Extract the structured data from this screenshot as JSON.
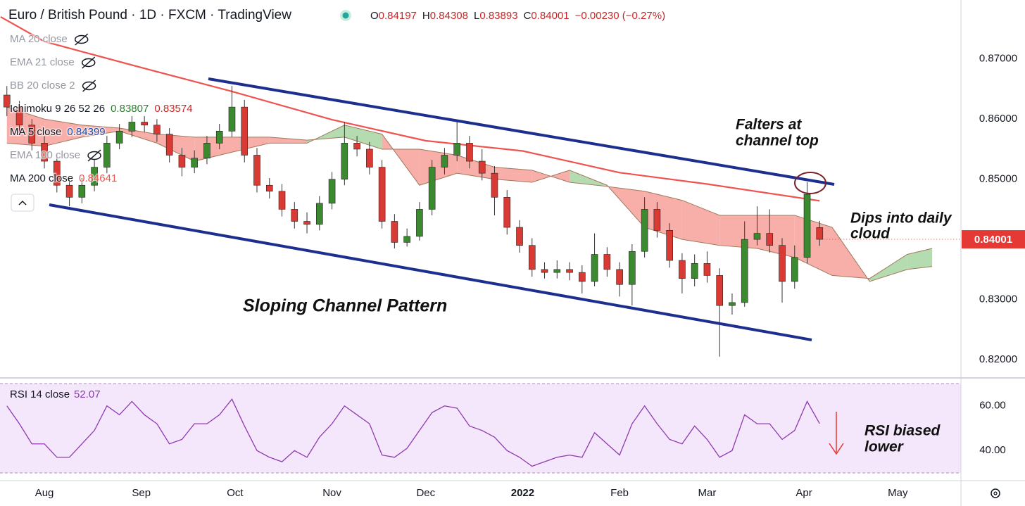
{
  "chart_data": {
    "type": "candlestick",
    "title": "Euro / British Pound · 1D · FXCM · TradingView",
    "ohlc_labels": [
      "O",
      "H",
      "L",
      "C"
    ],
    "change": "−0.00230 (−0.27%)",
    "up_color": "#3b8a30",
    "down_color": "#d93a33",
    "xlim": [
      -14.2,
      293.2
    ],
    "xticks": [
      {
        "value": 0,
        "label": "Aug"
      },
      {
        "value": 31,
        "label": "Sep"
      },
      {
        "value": 61,
        "label": "Oct"
      },
      {
        "value": 92,
        "label": "Nov"
      },
      {
        "value": 122,
        "label": "Dec"
      },
      {
        "value": 153,
        "label": "2022"
      },
      {
        "value": 184,
        "label": "Feb"
      },
      {
        "value": 212,
        "label": "Mar"
      },
      {
        "value": 243,
        "label": "Apr"
      },
      {
        "value": 273,
        "label": "May"
      }
    ],
    "ylim": [
      0.8172,
      0.8798
    ],
    "yticks": [
      {
        "value": 0.82,
        "label": "0.82000"
      },
      {
        "value": 0.83,
        "label": "0.83000"
      },
      {
        "value": 0.84,
        "label": "0.84000"
      },
      {
        "value": 0.85,
        "label": "0.85000"
      },
      {
        "value": 0.86,
        "label": "0.86000"
      },
      {
        "value": 0.87,
        "label": "0.87000"
      }
    ],
    "grid": false,
    "x": [
      -12,
      -8,
      -4,
      0,
      4,
      8,
      12,
      16,
      20,
      24,
      28,
      32,
      36,
      40,
      44,
      48,
      52,
      56,
      60,
      64,
      68,
      72,
      76,
      80,
      84,
      88,
      92,
      96,
      100,
      104,
      108,
      112,
      116,
      120,
      124,
      128,
      132,
      136,
      140,
      144,
      148,
      152,
      156,
      160,
      164,
      168,
      172,
      176,
      180,
      184,
      188,
      192,
      196,
      200,
      204,
      208,
      212,
      216,
      220,
      224,
      228,
      232,
      236,
      240,
      244,
      248
    ],
    "open": [
      0.864,
      0.862,
      0.859,
      0.856,
      0.853,
      0.849,
      0.847,
      0.849,
      0.852,
      0.856,
      0.858,
      0.8595,
      0.859,
      0.8575,
      0.854,
      0.852,
      0.8535,
      0.856,
      0.858,
      0.862,
      0.854,
      0.849,
      0.848,
      0.845,
      0.843,
      0.8425,
      0.846,
      0.85,
      0.856,
      0.855,
      0.852,
      0.843,
      0.8395,
      0.8405,
      0.845,
      0.852,
      0.854,
      0.856,
      0.853,
      0.851,
      0.847,
      0.842,
      0.839,
      0.835,
      0.8345,
      0.835,
      0.8345,
      0.833,
      0.8375,
      0.835,
      0.8325,
      0.838,
      0.845,
      0.8415,
      0.8365,
      0.8335,
      0.836,
      0.834,
      0.829,
      0.8295,
      0.84,
      0.841,
      0.839,
      0.833,
      0.837,
      0.84197
    ],
    "high": [
      0.8655,
      0.863,
      0.86,
      0.8572,
      0.854,
      0.85,
      0.8502,
      0.8532,
      0.8572,
      0.8592,
      0.8605,
      0.8605,
      0.86,
      0.8585,
      0.8552,
      0.8548,
      0.8572,
      0.8592,
      0.8655,
      0.8632,
      0.8552,
      0.8502,
      0.8492,
      0.8462,
      0.8445,
      0.8472,
      0.8512,
      0.8595,
      0.8572,
      0.8562,
      0.8532,
      0.8442,
      0.8418,
      0.8462,
      0.8532,
      0.8552,
      0.8598,
      0.8572,
      0.855,
      0.8522,
      0.8482,
      0.8432,
      0.8402,
      0.8362,
      0.8365,
      0.8362,
      0.8357,
      0.841,
      0.8387,
      0.8362,
      0.8392,
      0.847,
      0.8462,
      0.8427,
      0.8377,
      0.8375,
      0.838,
      0.8352,
      0.831,
      0.843,
      0.8455,
      0.845,
      0.8402,
      0.839,
      0.8495,
      0.84308
    ],
    "low": [
      0.8605,
      0.8578,
      0.8548,
      0.8518,
      0.8478,
      0.8455,
      0.846,
      0.848,
      0.851,
      0.855,
      0.857,
      0.8578,
      0.8562,
      0.8528,
      0.8505,
      0.851,
      0.8525,
      0.855,
      0.857,
      0.8528,
      0.8478,
      0.8468,
      0.8438,
      0.8418,
      0.841,
      0.8415,
      0.845,
      0.849,
      0.8538,
      0.8508,
      0.8418,
      0.8385,
      0.8388,
      0.8398,
      0.844,
      0.8508,
      0.853,
      0.8518,
      0.8498,
      0.844,
      0.8408,
      0.8378,
      0.8338,
      0.8335,
      0.8335,
      0.8332,
      0.831,
      0.8322,
      0.8338,
      0.8305,
      0.829,
      0.837,
      0.8403,
      0.8353,
      0.831,
      0.8322,
      0.8328,
      0.8205,
      0.8275,
      0.8288,
      0.839,
      0.8378,
      0.8295,
      0.8318,
      0.836,
      0.83893
    ],
    "close": [
      0.862,
      0.859,
      0.856,
      0.853,
      0.849,
      0.847,
      0.849,
      0.852,
      0.856,
      0.858,
      0.8595,
      0.859,
      0.8575,
      0.854,
      0.852,
      0.8535,
      0.856,
      0.858,
      0.862,
      0.854,
      0.849,
      0.848,
      0.845,
      0.843,
      0.8425,
      0.846,
      0.85,
      0.856,
      0.855,
      0.852,
      0.843,
      0.8395,
      0.8405,
      0.845,
      0.852,
      0.854,
      0.856,
      0.853,
      0.851,
      0.847,
      0.842,
      0.839,
      0.835,
      0.8345,
      0.835,
      0.8345,
      0.833,
      0.8375,
      0.835,
      0.8325,
      0.838,
      0.845,
      0.8415,
      0.8365,
      0.8335,
      0.836,
      0.834,
      0.829,
      0.8295,
      0.84,
      0.841,
      0.839,
      0.833,
      0.837,
      0.8475,
      0.84001
    ],
    "cloud": {
      "up_color": "#a8d5a2",
      "down_color": "#f7a19b",
      "edge_color": "#a0785a",
      "x": [
        -12,
        0,
        12,
        24,
        36,
        48,
        60,
        72,
        84,
        96,
        108,
        120,
        132,
        144,
        156,
        168,
        180,
        192,
        204,
        216,
        228,
        240,
        252,
        264,
        276,
        284
      ],
      "lead1": [
        0.856,
        0.8555,
        0.857,
        0.858,
        0.856,
        0.853,
        0.8545,
        0.856,
        0.856,
        0.859,
        0.8575,
        0.849,
        0.851,
        0.85,
        0.8495,
        0.8515,
        0.849,
        0.842,
        0.84,
        0.839,
        0.8385,
        0.837,
        0.834,
        0.8335,
        0.8375,
        0.8385
      ],
      "lead2": [
        0.862,
        0.86,
        0.859,
        0.8585,
        0.8575,
        0.857,
        0.857,
        0.857,
        0.8565,
        0.857,
        0.855,
        0.855,
        0.854,
        0.852,
        0.8515,
        0.8495,
        0.8488,
        0.848,
        0.8465,
        0.844,
        0.844,
        0.844,
        0.842,
        0.833,
        0.835,
        0.8355
      ]
    },
    "indicators": [
      {
        "name": "MA 20 close",
        "hidden": true
      },
      {
        "name": "EMA 21 close",
        "hidden": true
      },
      {
        "name": "BB 20 close 2",
        "hidden": true
      },
      {
        "name": "Ichimoku 9 26 52 26",
        "legend_values": [
          0.83807,
          0.83574
        ],
        "legend_colors": [
          "#2e7d32",
          "#c62828"
        ]
      },
      {
        "name": "MA 5 close",
        "legend_values": [
          0.84399
        ],
        "legend_colors": [
          "#1f4fa8"
        ]
      },
      {
        "name": "EMA 100 close",
        "hidden": true
      },
      {
        "name": "MA 200 close",
        "color": "#ef5350",
        "x": [
          -14,
          0,
          30,
          60,
          92,
          122,
          153,
          184,
          212,
          248
        ],
        "values": [
          0.877,
          0.8729,
          0.8687,
          0.8646,
          0.8599,
          0.8564,
          0.8547,
          0.8511,
          0.8492,
          0.84641
        ]
      }
    ],
    "rsi": {
      "name": "RSI 14 close",
      "color": "#8e3ab0",
      "ylim": [
        30,
        70
      ],
      "yticks": [
        {
          "value": 60,
          "label": "60.00"
        },
        {
          "value": 40,
          "label": "40.00"
        }
      ],
      "values": [
        60,
        52,
        43,
        43,
        37,
        37,
        43,
        49,
        60,
        56,
        62,
        56,
        52,
        43,
        45,
        52,
        52,
        56,
        63,
        51,
        40,
        37,
        35,
        40,
        37,
        46,
        52,
        60,
        56,
        52,
        38,
        37,
        41,
        49,
        57,
        60,
        59,
        51,
        49,
        46,
        40,
        37,
        33,
        35,
        37,
        38,
        37,
        48,
        43,
        38,
        52,
        60,
        52,
        45,
        43,
        51,
        45,
        37,
        40,
        56,
        52,
        52,
        45,
        49,
        62,
        52.07
      ]
    },
    "annotations": [
      "Falters at",
      "channel top",
      "Dips into daily",
      "cloud",
      "Sloping Channel Pattern",
      "RSI biased",
      "lower"
    ]
  }
}
